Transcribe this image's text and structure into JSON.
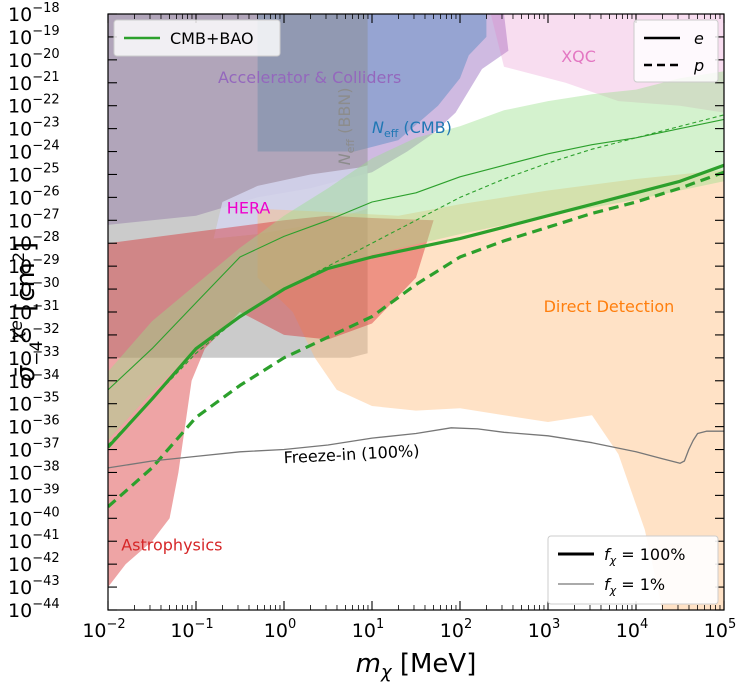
{
  "chart_data": {
    "type": "line",
    "title": "",
    "xlabel": "m_χ [MeV]",
    "ylabel": "σ̄_{-4}^{χe} [cm²]",
    "xscale": "log",
    "yscale": "log",
    "xlim": [
      0.01,
      100000
    ],
    "ylim": [
      1e-44,
      1e-18
    ],
    "x_ticks": [
      {
        "base": "10",
        "exp": "−2",
        "value": 0.01
      },
      {
        "base": "10",
        "exp": "−1",
        "value": 0.1
      },
      {
        "base": "10",
        "exp": "0",
        "value": 1
      },
      {
        "base": "10",
        "exp": "1",
        "value": 10
      },
      {
        "base": "10",
        "exp": "2",
        "value": 100
      },
      {
        "base": "10",
        "exp": "3",
        "value": 1000
      },
      {
        "base": "10",
        "exp": "4",
        "value": 10000
      },
      {
        "base": "10",
        "exp": "5",
        "value": 100000
      }
    ],
    "y_ticks": [
      {
        "base": "10",
        "exp": "−18",
        "value": -18
      },
      {
        "base": "10",
        "exp": "−19",
        "value": -19
      },
      {
        "base": "10",
        "exp": "−20",
        "value": -20
      },
      {
        "base": "10",
        "exp": "−21",
        "value": -21
      },
      {
        "base": "10",
        "exp": "−22",
        "value": -22
      },
      {
        "base": "10",
        "exp": "−23",
        "value": -23
      },
      {
        "base": "10",
        "exp": "−24",
        "value": -24
      },
      {
        "base": "10",
        "exp": "−25",
        "value": -25
      },
      {
        "base": "10",
        "exp": "−26",
        "value": -26
      },
      {
        "base": "10",
        "exp": "−27",
        "value": -27
      },
      {
        "base": "10",
        "exp": "−28",
        "value": -28
      },
      {
        "base": "10",
        "exp": "−29",
        "value": -29
      },
      {
        "base": "10",
        "exp": "−30",
        "value": -30
      },
      {
        "base": "10",
        "exp": "−31",
        "value": -31
      },
      {
        "base": "10",
        "exp": "−32",
        "value": -32
      },
      {
        "base": "10",
        "exp": "−33",
        "value": -33
      },
      {
        "base": "10",
        "exp": "−34",
        "value": -34
      },
      {
        "base": "10",
        "exp": "−35",
        "value": -35
      },
      {
        "base": "10",
        "exp": "−36",
        "value": -36
      },
      {
        "base": "10",
        "exp": "−37",
        "value": -37
      },
      {
        "base": "10",
        "exp": "−38",
        "value": -38
      },
      {
        "base": "10",
        "exp": "−39",
        "value": -39
      },
      {
        "base": "10",
        "exp": "−40",
        "value": -40
      },
      {
        "base": "10",
        "exp": "−41",
        "value": -41
      },
      {
        "base": "10",
        "exp": "−42",
        "value": -42
      },
      {
        "base": "10",
        "exp": "−43",
        "value": -43
      },
      {
        "base": "10",
        "exp": "−44",
        "value": -44
      }
    ],
    "regions": [
      {
        "name": "Accelerator & Colliders",
        "color": "#9467bd",
        "opacity": 0.45,
        "points": [
          [
            -2,
            -18
          ],
          [
            -0.3,
            -18
          ],
          [
            1.2,
            -18
          ],
          [
            2.0,
            -18
          ],
          [
            2.5,
            -18
          ],
          [
            2.55,
            -19.6
          ],
          [
            2.25,
            -20.4
          ],
          [
            1.95,
            -22.3
          ],
          [
            1.7,
            -23.2
          ],
          [
            1.4,
            -24.0
          ],
          [
            1.0,
            -24.9
          ],
          [
            0.3,
            -25.6
          ],
          [
            -0.3,
            -26.0
          ],
          [
            -1.0,
            -26.8
          ],
          [
            -2,
            -27.2
          ]
        ]
      },
      {
        "name": "N_eff (CMB)",
        "color": "#1f77b4",
        "opacity": 0.32,
        "points": [
          [
            -0.3,
            -18
          ],
          [
            2.3,
            -18
          ],
          [
            2.3,
            -19.0
          ],
          [
            2.1,
            -19.8
          ],
          [
            2.0,
            -20.8
          ],
          [
            1.75,
            -22.0
          ],
          [
            1.3,
            -23.5
          ],
          [
            0.8,
            -24.0
          ],
          [
            -0.3,
            -24.0
          ]
        ]
      },
      {
        "name": "N_eff (BBN)",
        "color": "#8c8c8c",
        "opacity": 0.45,
        "points": [
          [
            -2,
            -18
          ],
          [
            0.95,
            -18
          ],
          [
            0.95,
            -32.8
          ],
          [
            0.75,
            -33.0
          ],
          [
            0.6,
            -33.0
          ],
          [
            0.4,
            -33.0
          ],
          [
            -0.3,
            -33.0
          ],
          [
            -2,
            -33.0
          ]
        ]
      },
      {
        "name": "XQC",
        "color": "#e377c2",
        "opacity": 0.25,
        "points": [
          [
            2.35,
            -18
          ],
          [
            5,
            -18
          ],
          [
            5,
            -22.3
          ],
          [
            4.5,
            -22.0
          ],
          [
            3.8,
            -21.8
          ],
          [
            3.2,
            -21.0
          ],
          [
            2.9,
            -20.7
          ],
          [
            2.5,
            -20.3
          ]
        ]
      },
      {
        "name": "HERA",
        "color": "#d5d5ef",
        "opacity": 0.85,
        "points": [
          [
            -0.8,
            -27.8
          ],
          [
            -0.7,
            -26.2
          ],
          [
            -0.3,
            -25.5
          ],
          [
            0.3,
            -25.0
          ],
          [
            0.85,
            -24.7
          ],
          [
            0.95,
            -24.6
          ],
          [
            0.95,
            -26.5
          ],
          [
            0.6,
            -26.9
          ],
          [
            0.3,
            -27.2
          ],
          [
            -0.3,
            -27.6
          ]
        ]
      },
      {
        "name": "Direct Detection",
        "color": "#ffbb78",
        "opacity": 0.42,
        "points": [
          [
            -0.3,
            -26.5
          ],
          [
            0.3,
            -26.6
          ],
          [
            1.3,
            -26.8
          ],
          [
            2.0,
            -26.3
          ],
          [
            3.0,
            -25.7
          ],
          [
            4.0,
            -25.2
          ],
          [
            5,
            -24.8
          ],
          [
            5,
            -44
          ],
          [
            4.3,
            -44
          ],
          [
            4.1,
            -40.5
          ],
          [
            3.8,
            -37.2
          ],
          [
            3.5,
            -35.5
          ],
          [
            3.0,
            -35.8
          ],
          [
            2.5,
            -35.5
          ],
          [
            2.0,
            -35.2
          ],
          [
            1.5,
            -35.3
          ],
          [
            1.0,
            -35.1
          ],
          [
            0.6,
            -34.4
          ],
          [
            0.35,
            -33.0
          ],
          [
            0.1,
            -31.0
          ],
          [
            -0.3,
            -29.5
          ]
        ]
      },
      {
        "name": "Astrophysics",
        "color": "#d62728",
        "opacity": 0.42,
        "points": [
          [
            -2,
            -28
          ],
          [
            -1.6,
            -27.8
          ],
          [
            -1.0,
            -27.5
          ],
          [
            0.0,
            -27.0
          ],
          [
            0.5,
            -26.8
          ],
          [
            1.0,
            -26.9
          ],
          [
            1.7,
            -27.0
          ],
          [
            1.5,
            -29.5
          ],
          [
            1.0,
            -31.5
          ],
          [
            0.5,
            -32.2
          ],
          [
            0.0,
            -32.0
          ],
          [
            -0.5,
            -31.0
          ],
          [
            -0.9,
            -32.6
          ],
          [
            -1.05,
            -34.0
          ],
          [
            -1.2,
            -38.0
          ],
          [
            -1.3,
            -40.0
          ],
          [
            -1.5,
            -41.0
          ],
          [
            -1.8,
            -42.0
          ],
          [
            -2,
            -43.0
          ]
        ]
      },
      {
        "name": "CMB+BAO (100%) allowed",
        "color": "#98df8a",
        "opacity": 0.42,
        "points": [
          [
            -2,
            -36.6
          ],
          [
            -1.5,
            -34.5
          ],
          [
            -1.0,
            -32.6
          ],
          [
            -0.5,
            -31.2
          ],
          [
            0.0,
            -30.0
          ],
          [
            0.5,
            -29.1
          ],
          [
            1.0,
            -28.5
          ],
          [
            2.0,
            -27.6
          ],
          [
            3.0,
            -26.8
          ],
          [
            4.0,
            -26.1
          ],
          [
            5.0,
            -25.3
          ],
          [
            5,
            -20.5
          ],
          [
            4.5,
            -20.8
          ],
          [
            4.0,
            -21.3
          ],
          [
            3.5,
            -21.5
          ],
          [
            3.0,
            -21.8
          ],
          [
            2.5,
            -22.2
          ],
          [
            2.0,
            -22.9
          ],
          [
            1.5,
            -23.4
          ],
          [
            1.0,
            -24.3
          ],
          [
            0.5,
            -25.6
          ],
          [
            0.0,
            -26.8
          ],
          [
            -0.5,
            -28.2
          ],
          [
            -1.0,
            -29.8
          ],
          [
            -1.5,
            -31.4
          ],
          [
            -2,
            -33.6
          ]
        ]
      }
    ],
    "series": [
      {
        "name": "CMB+BAO, f_χ=100%, e",
        "color": "#2ca02c",
        "width": 3.2,
        "dash": "",
        "x": [
          -2,
          -1.5,
          -1,
          -0.5,
          0,
          0.5,
          1,
          1.5,
          2,
          2.5,
          3,
          3.5,
          4,
          4.5,
          5
        ],
        "y": [
          -36.9,
          -34.8,
          -32.6,
          -31.2,
          -30.0,
          -29.1,
          -28.6,
          -28.2,
          -27.8,
          -27.3,
          -26.8,
          -26.3,
          -25.8,
          -25.3,
          -24.6
        ]
      },
      {
        "name": "CMB+BAO, f_χ=100%, p",
        "color": "#2ca02c",
        "width": 3.2,
        "dash": "10,6",
        "x": [
          -2,
          -1.5,
          -1,
          -0.5,
          0,
          0.5,
          1,
          1.5,
          2,
          2.5,
          3,
          3.5,
          4,
          4.5,
          5
        ],
        "y": [
          -39.5,
          -37.8,
          -35.6,
          -34.2,
          -33.0,
          -32.1,
          -31.2,
          -29.8,
          -28.6,
          -27.9,
          -27.3,
          -26.7,
          -26.2,
          -25.6,
          -24.9
        ]
      },
      {
        "name": "CMB+BAO, f_χ=1%, e",
        "color": "#2ca02c",
        "width": 1.1,
        "dash": "",
        "x": [
          -2,
          -1.5,
          -1,
          -0.5,
          0,
          0.5,
          1,
          1.5,
          2,
          2.5,
          3,
          3.5,
          4,
          4.5,
          5
        ],
        "y": [
          -34.4,
          -32.6,
          -30.6,
          -28.6,
          -27.7,
          -27.0,
          -26.2,
          -25.8,
          -25.1,
          -24.6,
          -24.1,
          -23.7,
          -23.4,
          -23.0,
          -22.6
        ]
      },
      {
        "name": "CMB+BAO, f_χ=1%, p",
        "color": "#2ca02c",
        "width": 1.1,
        "dash": "4,3",
        "x": [
          -2,
          -1.5,
          -1,
          -0.5,
          0,
          0.5,
          1,
          1.5,
          2,
          2.5,
          3,
          3.5,
          4,
          4.5,
          5
        ],
        "y": [
          -36.8,
          -34.8,
          -32.8,
          -31.2,
          -30.0,
          -29.0,
          -28.0,
          -27.0,
          -26.0,
          -25.2,
          -24.5,
          -23.9,
          -23.4,
          -22.9,
          -22.4
        ]
      },
      {
        "name": "Freeze-in (100%)",
        "color": "#777777",
        "width": 1.3,
        "dash": "",
        "x": [
          -2,
          -1.5,
          -1,
          -0.5,
          0,
          0.5,
          1,
          1.5,
          1.9,
          2.2,
          2.5,
          3.0,
          3.5,
          4.0,
          4.3,
          4.5,
          4.55,
          4.6,
          4.65,
          4.7,
          4.8,
          5
        ],
        "y": [
          -37.8,
          -37.5,
          -37.3,
          -37.1,
          -37.0,
          -36.8,
          -36.5,
          -36.3,
          -36.05,
          -36.1,
          -36.25,
          -36.4,
          -36.7,
          -37.1,
          -37.4,
          -37.6,
          -37.5,
          -37.0,
          -36.6,
          -36.3,
          -36.2,
          -36.2
        ]
      }
    ],
    "region_labels": [
      {
        "text": "Accelerator & Colliders",
        "color": "#9467bd",
        "x": -0.75,
        "y": -21.0,
        "rotate": 0
      },
      {
        "text": "N_eff (CMB)",
        "color": "#1f77b4",
        "x": 1.0,
        "y": -23.2,
        "rotate": 0,
        "italic_prefix": "N",
        "sub": "eff",
        "rest": " (CMB)"
      },
      {
        "text": "N_eff (BBN)",
        "color": "#8c8c8c",
        "x": 0.75,
        "y": -24.6,
        "rotate": -90,
        "italic_prefix": "N",
        "sub": "eff",
        "rest": " (BBN)"
      },
      {
        "text": "XQC",
        "color": "#e377c2",
        "x": 3.15,
        "y": -20.1,
        "rotate": 0
      },
      {
        "text": "HERA",
        "color": "#ee00cc",
        "x": -0.65,
        "y": -26.7,
        "rotate": 0
      },
      {
        "text": "Direct Detection",
        "color": "#ff7f0e",
        "x": 2.95,
        "y": -31.0,
        "rotate": 0
      },
      {
        "text": "Astrophysics",
        "color": "#d62728",
        "x": -1.85,
        "y": -41.4,
        "rotate": 0
      },
      {
        "text": "Freeze-in (100%)",
        "color": "#000000",
        "x": 0.0,
        "y": -37.6,
        "rotate": -3
      }
    ],
    "legend_top_left": [
      {
        "label": "CMB+BAO",
        "color": "#2ca02c"
      }
    ],
    "legend_top_right": [
      {
        "label": "e",
        "style": "solid"
      },
      {
        "label": "p",
        "style": "dashed"
      }
    ],
    "legend_bottom_right": [
      {
        "label": "f_χ = 100%",
        "prefix": "f",
        "sub": "χ",
        "rest": " = 100%",
        "width": "thick"
      },
      {
        "label": "f_χ = 1%",
        "prefix": "f",
        "sub": "χ",
        "rest": " = 1%",
        "width": "thin"
      }
    ]
  }
}
